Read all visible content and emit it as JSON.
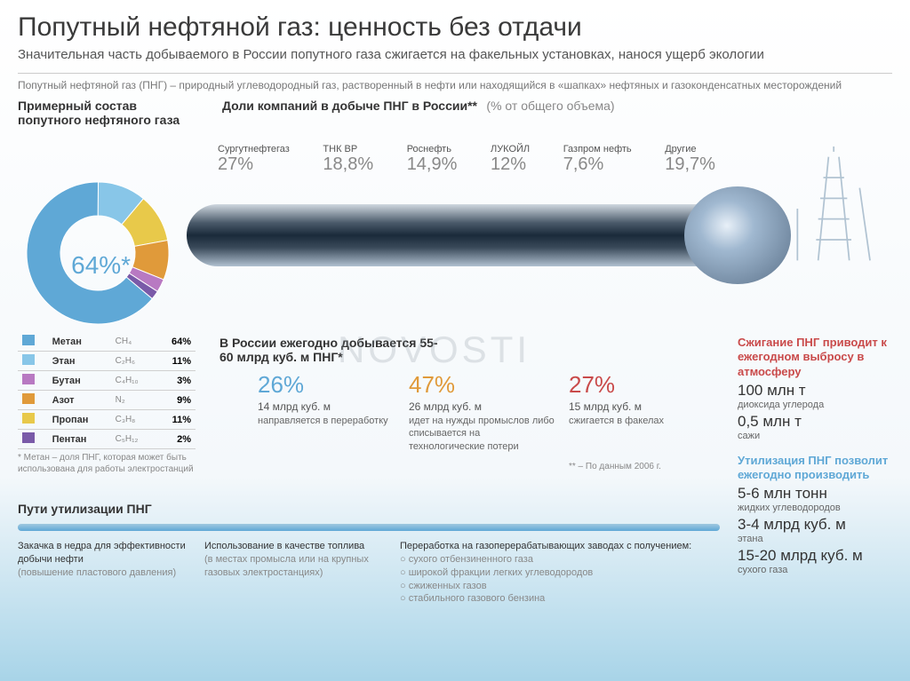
{
  "title": "Попутный нефтяной газ: ценность без отдачи",
  "subtitle": "Значительная часть добываемого в России попутного газа сжигается на факельных установках, нанося ущерб экологии",
  "definition": "Попутный нефтяной газ (ПНГ) – природный углеводородный газ, растворенный в нефти или находящийся в «шапках» нефтяных и газоконденсатных месторождений",
  "composition_title": "Примерный состав попутного нефтяного газа",
  "shares_title": "Доли компаний в добыче ПНГ в России**",
  "shares_sub": "(% от общего объема)",
  "companies": [
    {
      "name": "Сургутнефтегаз",
      "pct": "27%"
    },
    {
      "name": "ТНК ВР",
      "pct": "18,8%"
    },
    {
      "name": "Роснефть",
      "pct": "14,9%"
    },
    {
      "name": "ЛУКОЙЛ",
      "pct": "12%"
    },
    {
      "name": "Газпром нефть",
      "pct": "7,6%"
    },
    {
      "name": "Другие",
      "pct": "19,7%"
    }
  ],
  "pie": {
    "center_label": "64%*",
    "slices": [
      {
        "label": "Метан",
        "color": "#5fa8d6",
        "value": 64
      },
      {
        "label": "Этан",
        "color": "#88c6e8",
        "value": 11
      },
      {
        "label": "Пропан",
        "color": "#e8c94a",
        "value": 11
      },
      {
        "label": "Азот",
        "color": "#e09a3a",
        "value": 9
      },
      {
        "label": "Бутан",
        "color": "#b879c2",
        "value": 3
      },
      {
        "label": "Пентан",
        "color": "#7a5aa8",
        "value": 2
      }
    ]
  },
  "legend": [
    {
      "name": "Метан",
      "formula": "CH₄",
      "pct": "64%",
      "color": "#5fa8d6"
    },
    {
      "name": "Этан",
      "formula": "C₂H₆",
      "pct": "11%",
      "color": "#88c6e8"
    },
    {
      "name": "Бутан",
      "formula": "C₄H₁₀",
      "pct": "3%",
      "color": "#b879c2"
    },
    {
      "name": "Азот",
      "formula": "N₂",
      "pct": "9%",
      "color": "#e09a3a"
    },
    {
      "name": "Пропан",
      "formula": "C₃H₈",
      "pct": "11%",
      "color": "#e8c94a"
    },
    {
      "name": "Пентан",
      "formula": "C₅H₁₂",
      "pct": "2%",
      "color": "#7a5aa8"
    }
  ],
  "methane_note": "* Метан – доля ПНГ, которая может быть использована для работы электростанций",
  "annual": "В России ежегодно добывается 55-60 млрд куб. м ПНГ*",
  "usage": [
    {
      "pct": "26%",
      "vol": "14 млрд куб. м",
      "desc": "направляется в переработку"
    },
    {
      "pct": "47%",
      "vol": "26 млрд куб. м",
      "desc": "идет на нужды промыслов либо списывается на технологические потери"
    },
    {
      "pct": "27%",
      "vol": "15 млрд куб. м",
      "desc": "сжигается в факелах"
    }
  ],
  "note2006": "** – По данным 2006 г.",
  "side1_title": "Сжигание ПНГ приводит к ежегодном выбросу в атмосферу",
  "side1_v1": "100 млн т",
  "side1_l1": "диоксида углерода",
  "side1_v2": "0,5 млн т",
  "side1_l2": "сажи",
  "side2_title": "Утилизация ПНГ позволит ежегодно производить",
  "side2_v1": "5-6 млн тонн",
  "side2_l1": "жидких углеводородов",
  "side2_v2": "3-4 млрд куб. м",
  "side2_l2": "этана",
  "side2_v3": "15-20 млрд куб. м",
  "side2_l3": "сухого газа",
  "util_title": "Пути утилизации ПНГ",
  "util_cols": [
    {
      "h": "Закачка в недра для эффективности добычи нефти",
      "sub": "(повышение пластового давления)"
    },
    {
      "h": "Использование в качестве топлива",
      "sub": "(в местах промысла или на крупных газовых электростанциях)"
    },
    {
      "h": "Переработка на газоперерабатывающих заводах с получением:",
      "items": [
        "сухого отбензиненного газа",
        "широкой фракции легких углеводородов",
        "сжиженных газов",
        "стабильного газового бензина"
      ]
    }
  ],
  "watermark": "NOVOSTI"
}
